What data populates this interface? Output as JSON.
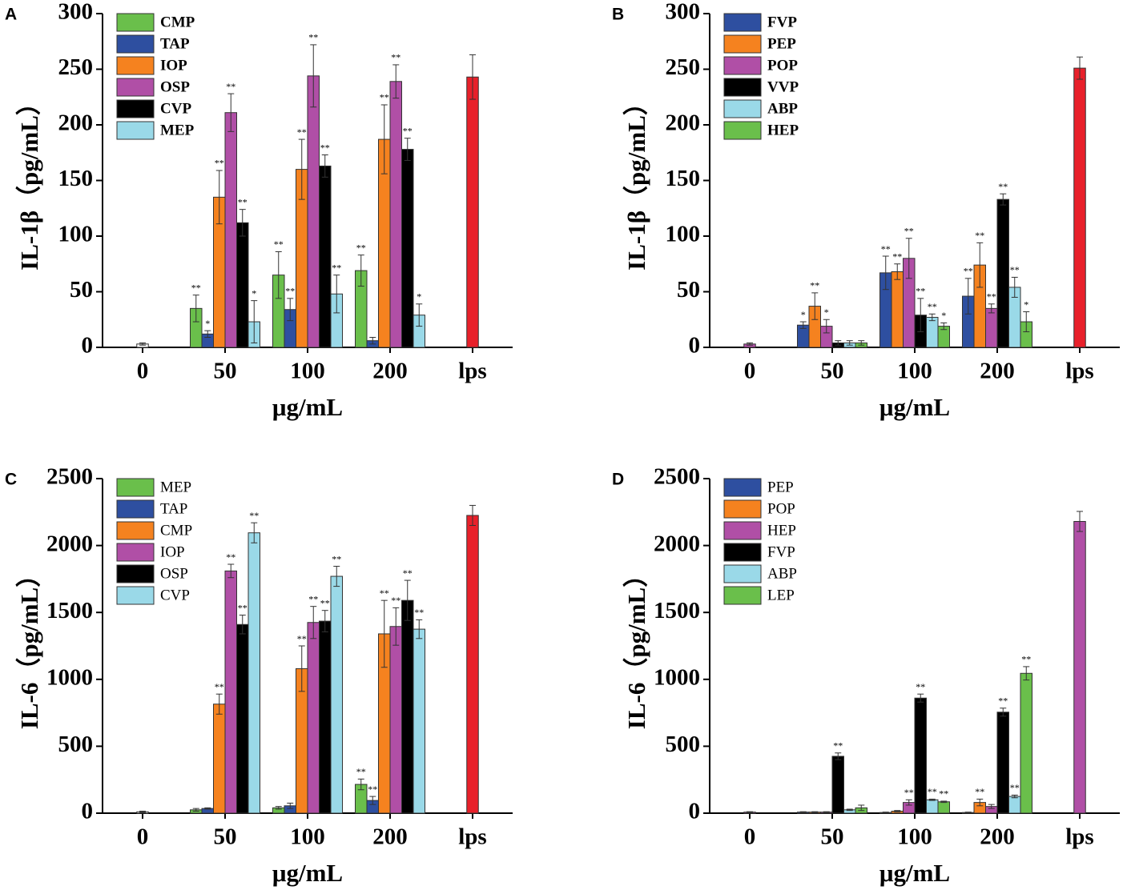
{
  "chart_data": [
    {
      "type": "bar",
      "panel_label": "A",
      "ylabel": "IL-1β（pg/mL）",
      "xlabel": "μg/mL",
      "categories": [
        "0",
        "50",
        "100",
        "200",
        "lps"
      ],
      "ylim": [
        0,
        300
      ],
      "yticks": [
        0,
        50,
        100,
        150,
        200,
        250,
        300
      ],
      "legend": "upper left",
      "legend_font_weight": "bold",
      "series": [
        {
          "name": "CMP",
          "color": "#6abf4b",
          "values": [
            null,
            35,
            65,
            69,
            null
          ],
          "errors": [
            null,
            12,
            21,
            14,
            null
          ],
          "annotations": [
            null,
            "**",
            "**",
            "**",
            null
          ]
        },
        {
          "name": "TAP",
          "color": "#2e4fa0",
          "values": [
            null,
            12,
            34,
            6,
            null
          ],
          "errors": [
            null,
            3,
            10,
            3,
            null
          ],
          "annotations": [
            null,
            "*",
            "**",
            null,
            null
          ]
        },
        {
          "name": "IOP",
          "color": "#f5821f",
          "values": [
            null,
            135,
            160,
            187,
            null
          ],
          "errors": [
            null,
            24,
            27,
            31,
            null
          ],
          "annotations": [
            null,
            "**",
            "**",
            "**",
            null
          ]
        },
        {
          "name": "OSP",
          "color": "#b04fa6",
          "values": [
            null,
            211,
            244,
            239,
            null
          ],
          "errors": [
            null,
            17,
            28,
            15,
            null
          ],
          "annotations": [
            null,
            "**",
            "**",
            "**",
            null
          ]
        },
        {
          "name": "CVP",
          "color": "#000000",
          "values": [
            null,
            112,
            163,
            178,
            null
          ],
          "errors": [
            null,
            12,
            10,
            10,
            null
          ],
          "annotations": [
            null,
            "**",
            "**",
            "**",
            null
          ]
        },
        {
          "name": "MEP",
          "color": "#9ad9e8",
          "values": [
            null,
            23,
            48,
            29,
            null
          ],
          "errors": [
            null,
            19,
            17,
            10,
            null
          ],
          "annotations": [
            null,
            "*",
            "**",
            "*",
            null
          ]
        },
        {
          "color": "#ffffff",
          "values": [
            3,
            null,
            null,
            null,
            null
          ],
          "errors": [
            1,
            null,
            null,
            null,
            null
          ]
        },
        {
          "color": "#e8202a",
          "values": [
            null,
            null,
            null,
            null,
            243
          ],
          "errors": [
            null,
            null,
            null,
            null,
            20
          ]
        }
      ]
    },
    {
      "type": "bar",
      "panel_label": "B",
      "ylabel": "IL-1β（pg/mL）",
      "xlabel": "μg/mL",
      "categories": [
        "0",
        "50",
        "100",
        "200",
        "lps"
      ],
      "ylim": [
        0,
        300
      ],
      "yticks": [
        0,
        50,
        100,
        150,
        200,
        250,
        300
      ],
      "legend": "upper left",
      "legend_font_weight": "bold",
      "series": [
        {
          "name": "FVP",
          "color": "#2e4fa0",
          "values": [
            null,
            20,
            67,
            46,
            null
          ],
          "errors": [
            null,
            3,
            15,
            16,
            null
          ],
          "annotations": [
            null,
            "*",
            "**",
            "**",
            null
          ]
        },
        {
          "name": "PEP",
          "color": "#f5821f",
          "values": [
            null,
            37,
            68,
            74,
            null
          ],
          "errors": [
            null,
            12,
            7,
            20,
            null
          ],
          "annotations": [
            null,
            "**",
            "**",
            "**",
            null
          ]
        },
        {
          "name": "POP",
          "color": "#b04fa6",
          "values": [
            null,
            19,
            80,
            35,
            null
          ],
          "errors": [
            null,
            6,
            18,
            4,
            null
          ],
          "annotations": [
            null,
            "*",
            "**",
            "**",
            null
          ]
        },
        {
          "name": "VVP",
          "color": "#000000",
          "values": [
            null,
            4,
            29,
            133,
            null
          ],
          "errors": [
            null,
            2,
            15,
            5,
            null
          ],
          "annotations": [
            null,
            null,
            "**",
            "**",
            null
          ]
        },
        {
          "name": "ABP",
          "color": "#9ad9e8",
          "values": [
            null,
            4,
            27,
            54,
            null
          ],
          "errors": [
            null,
            2,
            3,
            9,
            null
          ],
          "annotations": [
            null,
            null,
            "**",
            "**",
            null
          ]
        },
        {
          "name": "HEP",
          "color": "#6abf4b",
          "values": [
            null,
            4,
            19,
            23,
            null
          ],
          "errors": [
            null,
            2,
            3,
            9,
            null
          ],
          "annotations": [
            null,
            null,
            "*",
            "*",
            null
          ]
        },
        {
          "color": "#b04fa6",
          "values": [
            3,
            null,
            null,
            null,
            null
          ],
          "errors": [
            1,
            null,
            null,
            null,
            null
          ]
        },
        {
          "color": "#e8202a",
          "values": [
            null,
            null,
            null,
            null,
            251
          ],
          "errors": [
            null,
            null,
            null,
            null,
            10
          ]
        }
      ]
    },
    {
      "type": "bar",
      "panel_label": "C",
      "ylabel": "IL-6（pg/mL）",
      "xlabel": "μg/mL",
      "categories": [
        "0",
        "50",
        "100",
        "200",
        "lps"
      ],
      "ylim": [
        0,
        2500
      ],
      "yticks": [
        0,
        500,
        1000,
        1500,
        2000,
        2500
      ],
      "legend": "upper left",
      "legend_font_weight": "normal",
      "series": [
        {
          "name": "MEP",
          "color": "#6abf4b",
          "values": [
            null,
            25,
            40,
            215,
            null
          ],
          "errors": [
            null,
            10,
            10,
            40,
            null
          ],
          "annotations": [
            null,
            null,
            null,
            "**",
            null
          ]
        },
        {
          "name": "TAP",
          "color": "#2e4fa0",
          "values": [
            null,
            35,
            55,
            95,
            null
          ],
          "errors": [
            null,
            5,
            20,
            30,
            null
          ],
          "annotations": [
            null,
            null,
            null,
            "**",
            null
          ]
        },
        {
          "name": "CMP",
          "color": "#f5821f",
          "values": [
            null,
            815,
            1080,
            1340,
            null
          ],
          "errors": [
            null,
            75,
            170,
            250,
            null
          ],
          "annotations": [
            null,
            "**",
            "**",
            "**",
            null
          ]
        },
        {
          "name": "IOP",
          "color": "#b04fa6",
          "values": [
            null,
            1810,
            1425,
            1395,
            null
          ],
          "errors": [
            null,
            50,
            120,
            140,
            null
          ],
          "annotations": [
            null,
            "**",
            "**",
            "**",
            null
          ]
        },
        {
          "name": "OSP",
          "color": "#000000",
          "values": [
            null,
            1410,
            1435,
            1590,
            null
          ],
          "errors": [
            null,
            70,
            80,
            150,
            null
          ],
          "annotations": [
            null,
            "**",
            "**",
            "**",
            null
          ]
        },
        {
          "name": "CVP",
          "color": "#9ad9e8",
          "values": [
            null,
            2095,
            1770,
            1375,
            null
          ],
          "errors": [
            null,
            75,
            75,
            70,
            null
          ],
          "annotations": [
            null,
            "**",
            "**",
            "**",
            null
          ]
        },
        {
          "color": "#ffffff",
          "values": [
            10,
            null,
            null,
            null,
            null
          ],
          "errors": [
            5,
            null,
            null,
            null,
            null
          ]
        },
        {
          "color": "#e8202a",
          "values": [
            null,
            null,
            null,
            null,
            2225
          ],
          "errors": [
            null,
            null,
            null,
            null,
            75
          ]
        }
      ]
    },
    {
      "type": "bar",
      "panel_label": "D",
      "ylabel": "IL-6（pg/mL）",
      "xlabel": "μg/mL",
      "categories": [
        "0",
        "50",
        "100",
        "200",
        "lps"
      ],
      "ylim": [
        0,
        2500
      ],
      "yticks": [
        0,
        500,
        1000,
        1500,
        2000,
        2500
      ],
      "legend": "upper left",
      "legend_font_weight": "normal",
      "series": [
        {
          "name": "PEP",
          "color": "#2e4fa0",
          "values": [
            null,
            8,
            5,
            5,
            null
          ],
          "errors": [
            null,
            3,
            3,
            3,
            null
          ],
          "annotations": [
            null,
            null,
            null,
            null,
            null
          ]
        },
        {
          "name": "POP",
          "color": "#f5821f",
          "values": [
            null,
            8,
            15,
            80,
            null
          ],
          "errors": [
            null,
            3,
            5,
            25,
            null
          ],
          "annotations": [
            null,
            null,
            null,
            "**",
            null
          ]
        },
        {
          "name": "HEP",
          "color": "#b04fa6",
          "values": [
            null,
            8,
            80,
            50,
            null
          ],
          "errors": [
            null,
            3,
            20,
            15,
            null
          ],
          "annotations": [
            null,
            null,
            "**",
            null,
            null
          ]
        },
        {
          "name": "FVP",
          "color": "#000000",
          "values": [
            null,
            425,
            860,
            755,
            null
          ],
          "errors": [
            null,
            25,
            30,
            30,
            null
          ],
          "annotations": [
            null,
            "**",
            "**",
            "**",
            null
          ]
        },
        {
          "name": "ABP",
          "color": "#9ad9e8",
          "values": [
            null,
            25,
            100,
            125,
            null
          ],
          "errors": [
            null,
            5,
            5,
            10,
            null
          ],
          "annotations": [
            null,
            null,
            "**",
            "**",
            null
          ]
        },
        {
          "name": "LEP",
          "color": "#6abf4b",
          "values": [
            null,
            40,
            85,
            1045,
            null
          ],
          "errors": [
            null,
            20,
            5,
            50,
            null
          ],
          "annotations": [
            null,
            null,
            "**",
            "**",
            null
          ]
        },
        {
          "color": "#b04fa6",
          "values": [
            8,
            null,
            null,
            null,
            null
          ],
          "errors": [
            3,
            null,
            null,
            null,
            null
          ]
        },
        {
          "color": "#b04fa6",
          "values": [
            null,
            null,
            null,
            null,
            2180
          ],
          "errors": [
            null,
            null,
            null,
            null,
            75
          ]
        }
      ]
    }
  ]
}
